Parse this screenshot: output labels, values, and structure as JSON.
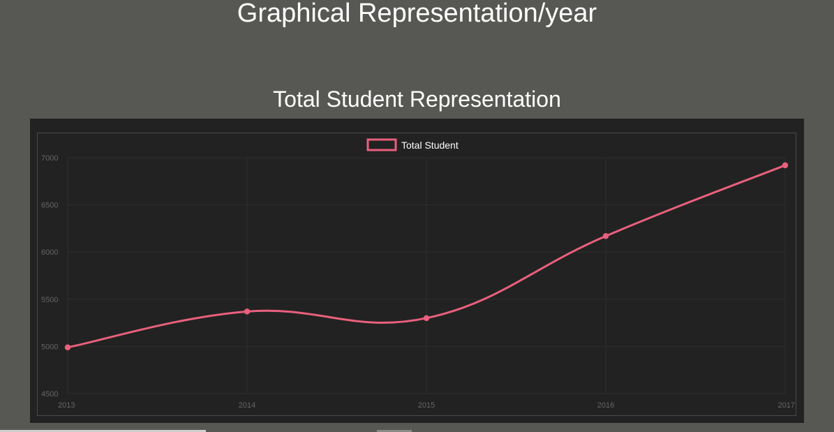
{
  "page": {
    "title": "Graphical Representation/year",
    "section_title": "Total Student Representation"
  },
  "colors": {
    "background": "#575753",
    "panel": "#222222",
    "series": "#e9607d",
    "grid": "#2e2e2e",
    "tick_text": "#666666",
    "legend_text": "#ffffff"
  },
  "chart_data": {
    "type": "line",
    "title": "",
    "xlabel": "",
    "ylabel": "",
    "categories": [
      "2013",
      "2014",
      "2015",
      "2016",
      "2017"
    ],
    "series": [
      {
        "name": "Total Student",
        "values": [
          4990,
          5370,
          5300,
          6170,
          6920
        ]
      }
    ],
    "ylim": [
      4500,
      7000
    ],
    "yticks": [
      4500,
      5000,
      5500,
      6000,
      6500,
      7000
    ],
    "grid": true,
    "legend": "top-center",
    "smooth": true
  }
}
